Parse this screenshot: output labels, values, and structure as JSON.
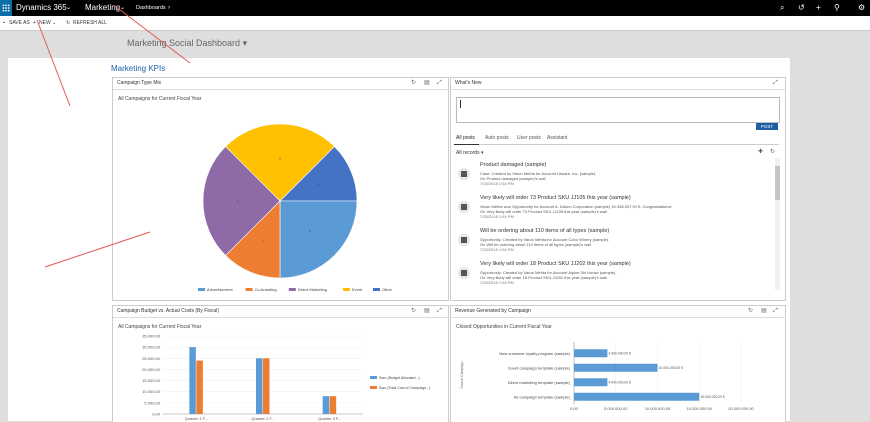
{
  "topbar": {
    "app_name": "Dynamics 365",
    "area": "Marketing",
    "breadcrumb": "Dashboards",
    "icons": [
      "search-icon",
      "history-icon",
      "plus-icon",
      "filter-icon",
      "gear-icon"
    ]
  },
  "commandbar": {
    "save_as": "SAVE AS",
    "new": "NEW",
    "refresh_all": "REFRESH ALL"
  },
  "dashboard_title": "Marketing Social Dashboard",
  "section_title": "Marketing KPIs",
  "campaign_type_mix": {
    "title": "Campaign Type Mix",
    "subtitle": "All Campaigns for Current Fiscal Year"
  },
  "whats_new": {
    "title": "What's New",
    "post_button": "POST",
    "tabs": [
      "All posts",
      "Auto posts",
      "User posts",
      "Assistant"
    ],
    "filter": "All records",
    "posts": [
      {
        "title": "Product damaged (sample)",
        "line1": "Case: Created by Varun Mehta for Account Litware, Inc. (sample).",
        "line2": "On Product damaged (sample)'s wall",
        "time": "7/25/2018 1:54 PM"
      },
      {
        "title": "Very likely will order 73 Product SKU JJ105 this year (sample)",
        "line1": "Varun Mehta won Opportunity for Account A. Datum Corporation (sample) 15.338.537,00 €. Congratulations!",
        "line2": "On Very likely will order 73 Product SKU JJ105 this year (sample)'s wall",
        "time": "7/25/2018 1:54 PM"
      },
      {
        "title": "Will be ordering about 110 items of all types (sample)",
        "line1": "Opportunity: Created by Varun Mehta for Account Coho Winery (sample).",
        "line2": "On Will be ordering about 110 items of all types (sample)'s wall",
        "time": "7/25/2018 1:54 PM"
      },
      {
        "title": "Very likely will order 18 Product SKU JJ202 this year (sample)",
        "line1": "Opportunity: Created by Varun Mehta for Account Alpine Ski House (sample).",
        "line2": "On Very likely will order 18 Product SKU JJ202 this year (sample)'s wall",
        "time": "7/25/2018 1:54 PM"
      }
    ]
  },
  "budget_panel": {
    "title": "Campaign Budget vs. Actual Costs (By Fiscal)",
    "subtitle": "All Campaigns for Current Fiscal Year"
  },
  "revenue_panel": {
    "title": "Revenue Generated by Campaign",
    "subtitle": "Closed Opportunities in Current Fiscal Year"
  },
  "colors": {
    "brand_blue": "#0c6ea6",
    "link_blue": "#1e5fa6",
    "series_blue": "#5b9bd5",
    "series_orange": "#ed7d31"
  },
  "chart_data": [
    {
      "type": "pie",
      "legend_position": "bottom",
      "slices": [
        {
          "name": "Advertisement",
          "value": 25,
          "color": "#5b9bd5"
        },
        {
          "name": "Co-branding",
          "value": 12.5,
          "color": "#ed7d31"
        },
        {
          "name": "Direct Marketing",
          "value": 25,
          "color": "#8e6aa6"
        },
        {
          "name": "Event",
          "value": 25,
          "color": "#ffc000"
        },
        {
          "name": "Other",
          "value": 12.5,
          "color": "#4472c4"
        }
      ]
    },
    {
      "type": "bar",
      "categories": [
        "Quarter 1 F...",
        "Quarter 2 F...",
        "Quarter 3 F..."
      ],
      "series": [
        {
          "name": "Sum (Budget Allocated...)",
          "values": [
            30000,
            25000,
            8000
          ],
          "color": "#5b9bd5"
        },
        {
          "name": "Sum (Total Cost of Campaign...)",
          "values": [
            24000,
            25000,
            8000
          ],
          "color": "#ed7d31"
        }
      ],
      "ylim": [
        0,
        35000
      ],
      "yticks": [
        "0,00",
        "5.000,00",
        "10.000,00",
        "15.000,00",
        "20.000,00",
        "25.000,00",
        "30.000,00",
        "35.000,00"
      ],
      "legend_position": "right"
    },
    {
      "type": "bar",
      "orientation": "horizontal",
      "categories": [
        "New customer loyalty program (sample)",
        "Event campaign template (sample)",
        "Direct marketing template (sample)",
        "Ad campaign template (sample)"
      ],
      "values": [
        4000000,
        10000000,
        4000000,
        15000000
      ],
      "value_labels": [
        "4.000.000,00 €",
        "10.000.000,00 €",
        "4.000.000,00 €",
        "15.000.000,00 €"
      ],
      "xlim": [
        0,
        20000000
      ],
      "xticks": [
        "0,00",
        "5.000.000,00",
        "10.000.000,00",
        "15.000.000,00",
        "20.000.000,00"
      ],
      "ylabel": "Source Campaign",
      "color": "#5b9bd5"
    }
  ]
}
